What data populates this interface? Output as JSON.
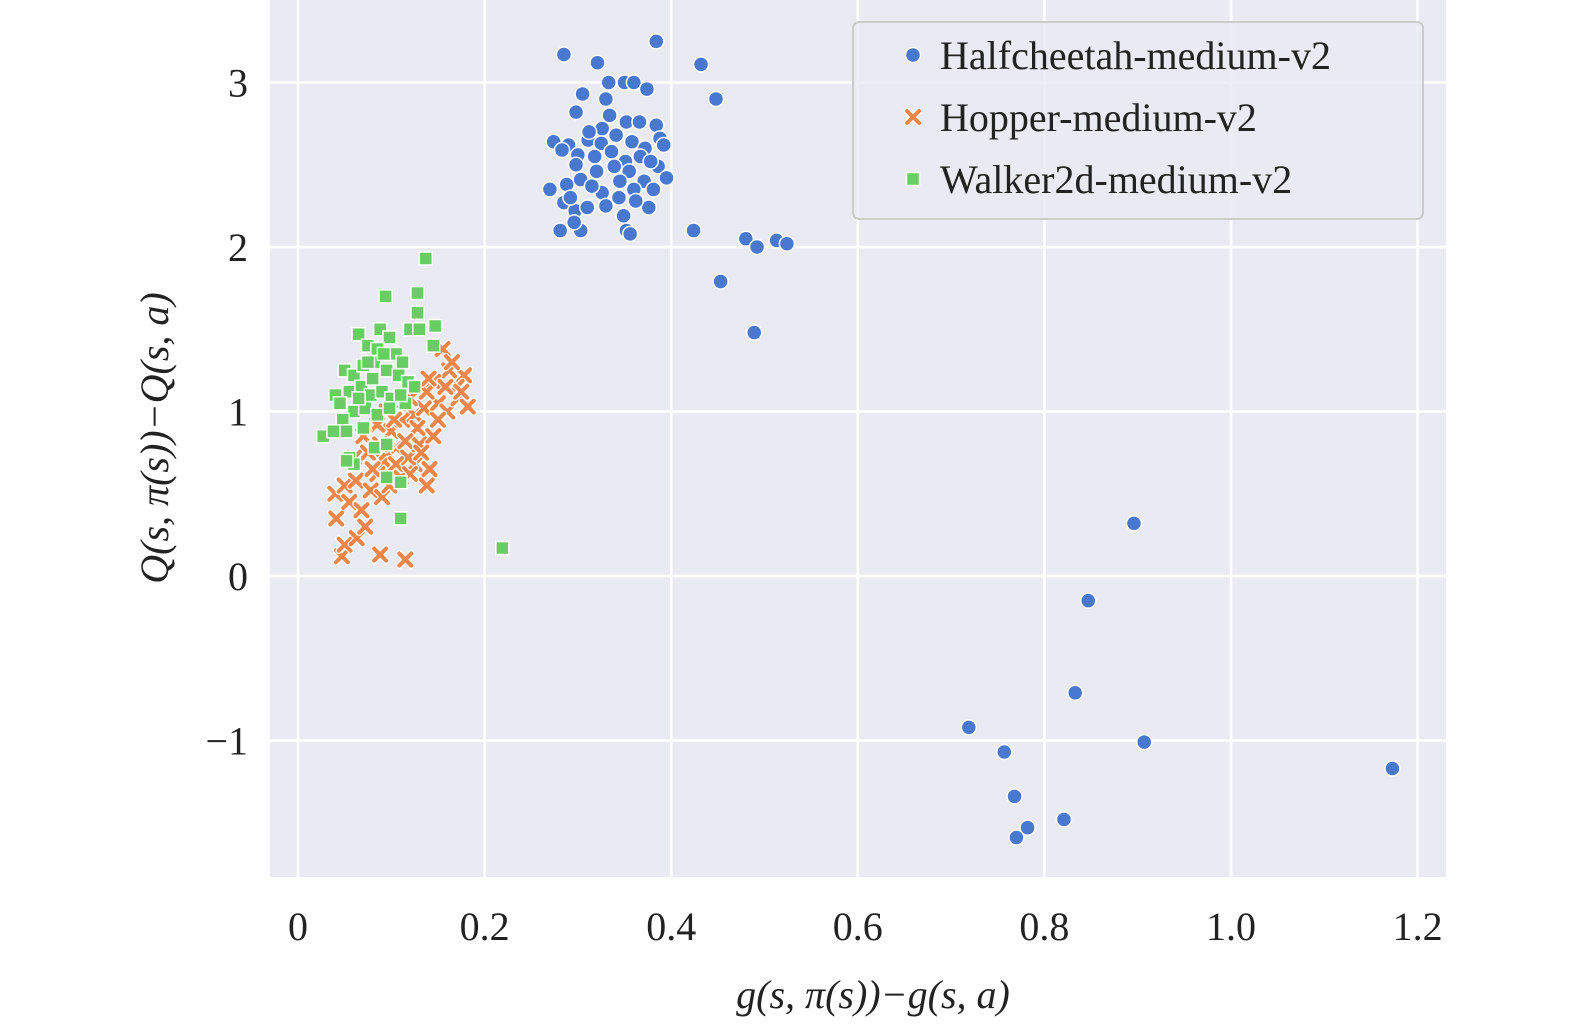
{
  "chart_data": {
    "type": "scatter",
    "title": "",
    "xlabel": "g(s, π(s))−g(s, a)",
    "ylabel": "Q(s, π(s))−Q(s, a)",
    "xlim": [
      -0.04,
      1.23
    ],
    "ylim": [
      -1.83,
      3.5
    ],
    "xticks": [
      0,
      0.2,
      0.4,
      0.6,
      0.8,
      1.0,
      1.2
    ],
    "xtick_labels": [
      "0",
      "0.2",
      "0.4",
      "0.6",
      "0.8",
      "1.0",
      "1.2"
    ],
    "yticks": [
      -1,
      0,
      1,
      2,
      3
    ],
    "ytick_labels": [
      "−1",
      "0",
      "1",
      "2",
      "3"
    ],
    "grid": true,
    "legend_position": "top-right",
    "series": [
      {
        "name": "Halfcheetah-medium-v2",
        "marker": "circle",
        "color": "#4878d0",
        "points": [
          [
            0.424,
            2.1
          ],
          [
            0.48,
            2.05
          ],
          [
            0.492,
            2.0
          ],
          [
            0.513,
            2.04
          ],
          [
            0.524,
            2.02
          ],
          [
            0.453,
            1.79
          ],
          [
            0.489,
            1.48
          ],
          [
            0.432,
            3.11
          ],
          [
            0.448,
            2.9
          ],
          [
            0.384,
            3.25
          ],
          [
            0.285,
            3.17
          ],
          [
            0.321,
            3.12
          ],
          [
            0.896,
            0.32
          ],
          [
            0.847,
            -0.15
          ],
          [
            0.833,
            -0.71
          ],
          [
            0.719,
            -0.92
          ],
          [
            0.757,
            -1.07
          ],
          [
            0.907,
            -1.01
          ],
          [
            1.173,
            -1.17
          ],
          [
            0.768,
            -1.34
          ],
          [
            0.821,
            -1.48
          ],
          [
            0.782,
            -1.53
          ],
          [
            0.77,
            -1.59
          ],
          [
            0.333,
            3.0
          ],
          [
            0.35,
            3.0
          ],
          [
            0.36,
            3.0
          ],
          [
            0.374,
            2.96
          ],
          [
            0.305,
            2.93
          ],
          [
            0.33,
            2.9
          ],
          [
            0.298,
            2.82
          ],
          [
            0.334,
            2.8
          ],
          [
            0.352,
            2.76
          ],
          [
            0.366,
            2.76
          ],
          [
            0.384,
            2.74
          ],
          [
            0.274,
            2.64
          ],
          [
            0.29,
            2.62
          ],
          [
            0.311,
            2.65
          ],
          [
            0.325,
            2.63
          ],
          [
            0.341,
            2.68
          ],
          [
            0.358,
            2.64
          ],
          [
            0.372,
            2.6
          ],
          [
            0.388,
            2.66
          ],
          [
            0.392,
            2.62
          ],
          [
            0.283,
            2.59
          ],
          [
            0.3,
            2.56
          ],
          [
            0.318,
            2.55
          ],
          [
            0.336,
            2.58
          ],
          [
            0.351,
            2.52
          ],
          [
            0.367,
            2.55
          ],
          [
            0.386,
            2.49
          ],
          [
            0.395,
            2.42
          ],
          [
            0.27,
            2.35
          ],
          [
            0.288,
            2.38
          ],
          [
            0.303,
            2.41
          ],
          [
            0.32,
            2.46
          ],
          [
            0.339,
            2.49
          ],
          [
            0.355,
            2.46
          ],
          [
            0.371,
            2.4
          ],
          [
            0.381,
            2.35
          ],
          [
            0.285,
            2.27
          ],
          [
            0.297,
            2.22
          ],
          [
            0.31,
            2.24
          ],
          [
            0.326,
            2.33
          ],
          [
            0.344,
            2.3
          ],
          [
            0.36,
            2.35
          ],
          [
            0.376,
            2.24
          ],
          [
            0.281,
            2.1
          ],
          [
            0.303,
            2.1
          ],
          [
            0.352,
            2.1
          ],
          [
            0.356,
            2.08
          ],
          [
            0.296,
            2.15
          ],
          [
            0.349,
            2.19
          ],
          [
            0.292,
            2.3
          ],
          [
            0.315,
            2.37
          ],
          [
            0.33,
            2.25
          ],
          [
            0.345,
            2.4
          ],
          [
            0.362,
            2.28
          ],
          [
            0.298,
            2.5
          ],
          [
            0.378,
            2.52
          ],
          [
            0.326,
            2.72
          ],
          [
            0.312,
            2.7
          ]
        ]
      },
      {
        "name": "Hopper-medium-v2",
        "marker": "x",
        "color": "#ee854a",
        "points": [
          [
            0.047,
            0.12
          ],
          [
            0.088,
            0.13
          ],
          [
            0.115,
            0.1
          ],
          [
            0.041,
            0.35
          ],
          [
            0.05,
            0.19
          ],
          [
            0.063,
            0.23
          ],
          [
            0.072,
            0.3
          ],
          [
            0.04,
            0.5
          ],
          [
            0.055,
            0.45
          ],
          [
            0.068,
            0.4
          ],
          [
            0.05,
            0.55
          ],
          [
            0.062,
            0.58
          ],
          [
            0.078,
            0.52
          ],
          [
            0.09,
            0.48
          ],
          [
            0.085,
            0.62
          ],
          [
            0.098,
            0.55
          ],
          [
            0.11,
            0.6
          ],
          [
            0.125,
            0.68
          ],
          [
            0.138,
            0.55
          ],
          [
            0.141,
            0.65
          ],
          [
            0.06,
            0.72
          ],
          [
            0.075,
            0.75
          ],
          [
            0.092,
            0.7
          ],
          [
            0.105,
            0.78
          ],
          [
            0.118,
            0.72
          ],
          [
            0.13,
            0.8
          ],
          [
            0.145,
            0.85
          ],
          [
            0.1,
            0.88
          ],
          [
            0.085,
            0.92
          ],
          [
            0.07,
            0.85
          ],
          [
            0.112,
            0.95
          ],
          [
            0.125,
            0.98
          ],
          [
            0.135,
            1.02
          ],
          [
            0.15,
            1.05
          ],
          [
            0.16,
            1.0
          ],
          [
            0.172,
            1.08
          ],
          [
            0.182,
            1.03
          ],
          [
            0.178,
            1.22
          ],
          [
            0.17,
            1.15
          ],
          [
            0.162,
            1.25
          ],
          [
            0.155,
            1.38
          ],
          [
            0.165,
            1.3
          ],
          [
            0.145,
            1.18
          ],
          [
            0.138,
            1.12
          ],
          [
            0.12,
            1.08
          ],
          [
            0.108,
            1.05
          ],
          [
            0.095,
            1.0
          ],
          [
            0.15,
            0.95
          ],
          [
            0.128,
            0.9
          ],
          [
            0.115,
            0.82
          ],
          [
            0.08,
            0.65
          ],
          [
            0.095,
            0.75
          ],
          [
            0.105,
            0.68
          ],
          [
            0.14,
            1.2
          ],
          [
            0.175,
            1.12
          ],
          [
            0.158,
            1.15
          ],
          [
            0.132,
            0.75
          ],
          [
            0.12,
            0.62
          ],
          [
            0.103,
            0.95
          ],
          [
            0.088,
            0.8
          ]
        ]
      },
      {
        "name": "Walker2d-medium-v2",
        "marker": "square",
        "color": "#6acc64",
        "points": [
          [
            0.137,
            1.93
          ],
          [
            0.094,
            1.7
          ],
          [
            0.128,
            1.72
          ],
          [
            0.128,
            1.6
          ],
          [
            0.147,
            1.52
          ],
          [
            0.11,
            0.35
          ],
          [
            0.219,
            0.17
          ],
          [
            0.027,
            0.85
          ],
          [
            0.145,
            1.4
          ],
          [
            0.065,
            1.47
          ],
          [
            0.088,
            1.5
          ],
          [
            0.098,
            1.45
          ],
          [
            0.12,
            1.5
          ],
          [
            0.13,
            1.5
          ],
          [
            0.075,
            1.4
          ],
          [
            0.085,
            1.38
          ],
          [
            0.105,
            1.35
          ],
          [
            0.112,
            1.3
          ],
          [
            0.05,
            1.25
          ],
          [
            0.06,
            1.22
          ],
          [
            0.07,
            1.28
          ],
          [
            0.082,
            1.3
          ],
          [
            0.095,
            1.25
          ],
          [
            0.108,
            1.22
          ],
          [
            0.118,
            1.18
          ],
          [
            0.04,
            1.1
          ],
          [
            0.055,
            1.12
          ],
          [
            0.068,
            1.15
          ],
          [
            0.078,
            1.1
          ],
          [
            0.09,
            1.12
          ],
          [
            0.1,
            1.08
          ],
          [
            0.115,
            1.05
          ],
          [
            0.125,
            1.15
          ],
          [
            0.045,
            1.05
          ],
          [
            0.06,
            1.0
          ],
          [
            0.072,
            1.02
          ],
          [
            0.085,
            0.98
          ],
          [
            0.098,
            1.02
          ],
          [
            0.11,
            1.1
          ],
          [
            0.048,
            0.95
          ],
          [
            0.038,
            0.88
          ],
          [
            0.052,
            0.88
          ],
          [
            0.07,
            0.9
          ],
          [
            0.082,
            0.78
          ],
          [
            0.055,
            0.72
          ],
          [
            0.06,
            0.68
          ],
          [
            0.052,
            0.7
          ],
          [
            0.095,
            0.8
          ],
          [
            0.095,
            0.6
          ],
          [
            0.11,
            0.57
          ],
          [
            0.08,
            1.2
          ],
          [
            0.092,
            1.35
          ],
          [
            0.075,
            1.3
          ],
          [
            0.065,
            1.08
          ]
        ]
      }
    ]
  }
}
